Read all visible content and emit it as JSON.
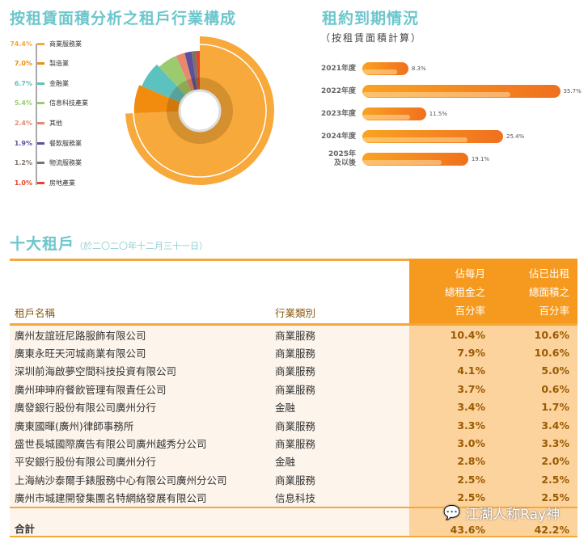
{
  "industry": {
    "title": "按租賃面積分析之租戶行業構成",
    "items": [
      {
        "pct": "74.4%",
        "label": "商業服務業",
        "value": 74.4,
        "color": "#f7a93b"
      },
      {
        "pct": "7.0%",
        "label": "製造業",
        "value": 7.0,
        "color": "#f28c0f"
      },
      {
        "pct": "6.7%",
        "label": "金融業",
        "value": 6.7,
        "color": "#5bc2c0"
      },
      {
        "pct": "5.4%",
        "label": "信息科技產業",
        "value": 5.4,
        "color": "#9ccb6f"
      },
      {
        "pct": "2.4%",
        "label": "其他",
        "value": 2.4,
        "color": "#e8896e"
      },
      {
        "pct": "1.9%",
        "label": "餐飲服務業",
        "value": 1.9,
        "color": "#5b4f9e"
      },
      {
        "pct": "1.2%",
        "label": "物流服務業",
        "value": 1.2,
        "color": "#7a7468"
      },
      {
        "pct": "1.0%",
        "label": "房地產業",
        "value": 1.0,
        "color": "#e8432a"
      }
    ]
  },
  "expiry": {
    "title": "租約到期情況",
    "subtitle": "（按租賃面積計算）",
    "items": [
      {
        "year": "2021年度",
        "label": "8.3%",
        "value": 8.3
      },
      {
        "year": "2022年度",
        "label": "35.7%",
        "value": 35.7
      },
      {
        "year": "2023年度",
        "label": "11.5%",
        "value": 11.5
      },
      {
        "year": "2024年度",
        "label": "25.4%",
        "value": 25.4
      },
      {
        "year": "2025年\n及以後",
        "label": "19.1%",
        "value": 19.1
      }
    ]
  },
  "chart_data": [
    {
      "type": "pie",
      "title": "按租賃面積分析之租戶行業構成",
      "categories": [
        "商業服務業",
        "製造業",
        "金融業",
        "信息科技產業",
        "其他",
        "餐飲服務業",
        "物流服務業",
        "房地產業"
      ],
      "values": [
        74.4,
        7.0,
        6.7,
        5.4,
        2.4,
        1.9,
        1.2,
        1.0
      ]
    },
    {
      "type": "bar",
      "title": "租約到期情況",
      "subtitle": "（按租賃面積計算）",
      "categories": [
        "2021年度",
        "2022年度",
        "2023年度",
        "2024年度",
        "2025年及以後"
      ],
      "values": [
        8.3,
        35.7,
        11.5,
        25.4,
        19.1
      ],
      "orientation": "horizontal"
    }
  ],
  "tenants": {
    "title": "十大租戶",
    "subtitle": "（於二〇二〇年十二月三十一日）",
    "headers": [
      "租戶名稱",
      "行業類別",
      "佔每月\n總租金之\n百分率",
      "佔已出租\n總面積之\n百分率"
    ],
    "rows": [
      [
        "廣州友誼班尼路服飾有限公司",
        "商業服務",
        "10.4%",
        "10.6%"
      ],
      [
        "廣東永旺天河城商業有限公司",
        "商業服務",
        "7.9%",
        "10.6%"
      ],
      [
        "深圳前海啟夢空間科技投資有限公司",
        "商業服務",
        "4.1%",
        "5.0%"
      ],
      [
        "廣州珅珅府餐飲管理有限責任公司",
        "商業服務",
        "3.7%",
        "0.6%"
      ],
      [
        "廣發銀行股份有限公司廣州分行",
        "金融",
        "3.4%",
        "1.7%"
      ],
      [
        "廣東國暉(廣州)律師事務所",
        "商業服務",
        "3.3%",
        "3.4%"
      ],
      [
        "盛世長城國際廣告有限公司廣州越秀分公司",
        "商業服務",
        "3.0%",
        "3.3%"
      ],
      [
        "平安銀行股份有限公司廣州分行",
        "金融",
        "2.8%",
        "2.0%"
      ],
      [
        "上海納沙泰爾手錶服務中心有限公司廣州分公司",
        "商業服務",
        "2.5%",
        "2.5%"
      ],
      [
        "廣州市城建開發集團名特網絡發展有限公司",
        "信息科技",
        "2.5%",
        "2.5%"
      ]
    ],
    "total": [
      "合計",
      "",
      "43.6%",
      "42.2%"
    ]
  },
  "watermark": "江湖人称Ray神"
}
